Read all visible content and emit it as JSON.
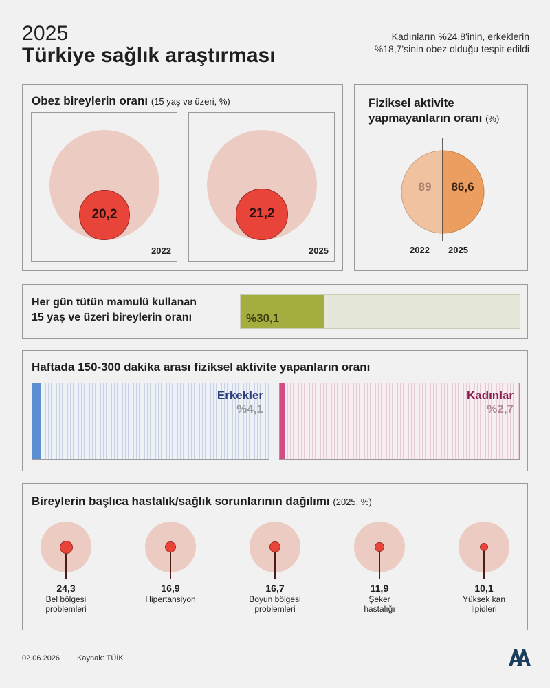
{
  "header": {
    "year": "2025",
    "title": "Türkiye sağlık araştırması",
    "subtitle": "Kadınların %24,8'inin, erkeklerin %18,7'sinin obez olduğu tespit edildi"
  },
  "obesity": {
    "title": "Obez bireylerin oranı",
    "unit": "(15 yaş ve üzeri, %)",
    "items": [
      {
        "year": "2022",
        "value_label": "20,2"
      },
      {
        "year": "2025",
        "value_label": "21,2"
      }
    ]
  },
  "inactivity": {
    "title_line1": "Fiziksel aktivite",
    "title_line2": "yapmayanların oranı",
    "unit": "(%)",
    "items": [
      {
        "year": "2022",
        "value_label": "89"
      },
      {
        "year": "2025",
        "value_label": "86,6"
      }
    ]
  },
  "tobacco": {
    "label_line1": "Her gün tütün mamulü kullanan",
    "label_line2": "15 yaş ve üzeri bireylerin oranı",
    "value_label": "%30,1"
  },
  "activity": {
    "title": "Haftada 150-300 dakika arası fiziksel aktivite yapanların oranı",
    "items": [
      {
        "name": "Erkekler",
        "value_label": "%4,1"
      },
      {
        "name": "Kadınlar",
        "value_label": "%2,7"
      }
    ]
  },
  "diseases": {
    "title": "Bireylerin başlıca hastalık/sağlık sorunlarının dağılımı",
    "unit": "(2025, %)",
    "items": [
      {
        "value_label": "24,3",
        "label_line1": "Bel bölgesi",
        "label_line2": "problemleri"
      },
      {
        "value_label": "16,9",
        "label_line1": "Hipertansiyon",
        "label_line2": ""
      },
      {
        "value_label": "16,7",
        "label_line1": "Boyun bölgesi",
        "label_line2": "problemleri"
      },
      {
        "value_label": "11,9",
        "label_line1": "Şeker",
        "label_line2": "hastalığı"
      },
      {
        "value_label": "10,1",
        "label_line1": "Yüksek kan",
        "label_line2": "lipidleri"
      }
    ]
  },
  "footer": {
    "date": "02.06.2026",
    "source": "Kaynak: TÜİK"
  },
  "colors": {
    "outer_circle": "#eccbc2",
    "inner_circle": "#e8443a",
    "inactive_2022": "#f1c2a0",
    "inactive_2025": "#ec9e60",
    "tobacco_fill": "#a4ad3f",
    "male": "#3f78c4",
    "female": "#c93d7a"
  },
  "chart_data": [
    {
      "type": "bubble",
      "title": "Obez bireylerin oranı",
      "categories": [
        "2022",
        "2025"
      ],
      "values": [
        20.2,
        21.2
      ],
      "ylim": [
        0,
        100
      ]
    },
    {
      "type": "pie",
      "title": "Fiziksel aktivite yapmayanların oranı",
      "categories": [
        "2022",
        "2025"
      ],
      "values": [
        89,
        86.6
      ]
    },
    {
      "type": "bar",
      "title": "Her gün tütün mamulü kullanan 15 yaş ve üzeri bireylerin oranı",
      "values": [
        30.1
      ],
      "ylim": [
        0,
        100
      ]
    },
    {
      "type": "bar",
      "title": "Haftada 150-300 dakika arası fiziksel aktivite yapanların oranı",
      "categories": [
        "Erkekler",
        "Kadınlar"
      ],
      "values": [
        4.1,
        2.7
      ],
      "ylim": [
        0,
        100
      ]
    },
    {
      "type": "bubble",
      "title": "Bireylerin başlıca hastalık/sağlık sorunlarının dağılımı",
      "categories": [
        "Bel bölgesi problemleri",
        "Hipertansiyon",
        "Boyun bölgesi problemleri",
        "Şeker hastalığı",
        "Yüksek kan lipidleri"
      ],
      "values": [
        24.3,
        16.9,
        16.7,
        11.9,
        10.1
      ]
    }
  ]
}
